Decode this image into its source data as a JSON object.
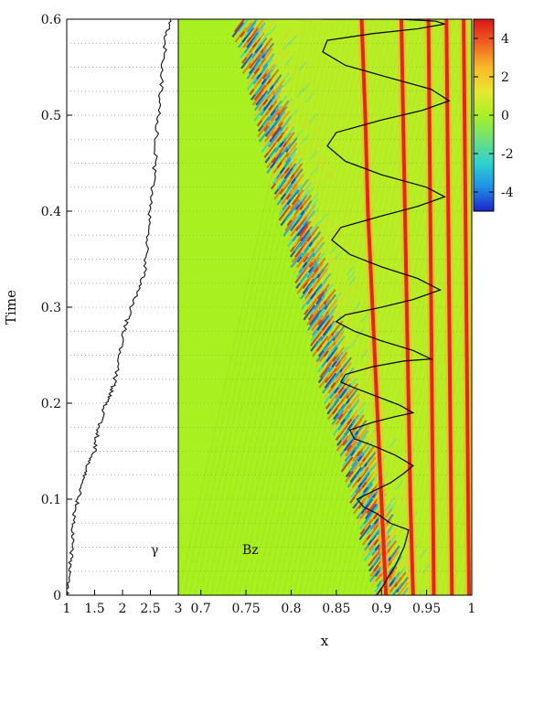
{
  "chart_data": [
    {
      "type": "line",
      "panel": "left",
      "label": "γ",
      "xlim": [
        1,
        3
      ],
      "ylim": [
        0,
        0.6
      ],
      "xticks": [
        "1",
        "1.5",
        "2",
        "2.5",
        "3"
      ],
      "yticks": [
        "0",
        "0.1",
        "0.2",
        "0.3",
        "0.4",
        "0.5",
        "0.6"
      ],
      "ylabel": "Time",
      "grid": "horizontal dotted",
      "series": [
        {
          "x": [
            1.0,
            1.04,
            1.08,
            1.1,
            1.12,
            1.2,
            1.3,
            1.35,
            1.5,
            1.55,
            1.65,
            1.75,
            1.85,
            1.95,
            2.05,
            2.15,
            2.3,
            2.4,
            2.45,
            2.5,
            2.55,
            2.6,
            2.62,
            2.68,
            2.72,
            2.78,
            2.85
          ],
          "y": [
            0.0,
            0.02,
            0.04,
            0.06,
            0.08,
            0.1,
            0.12,
            0.135,
            0.15,
            0.17,
            0.19,
            0.205,
            0.22,
            0.25,
            0.28,
            0.3,
            0.32,
            0.34,
            0.37,
            0.4,
            0.43,
            0.46,
            0.49,
            0.52,
            0.55,
            0.58,
            0.6
          ]
        }
      ]
    },
    {
      "type": "heatmap",
      "panel": "right",
      "label": "Bz",
      "xlabel": "x",
      "xlim": [
        0.675,
        1.0
      ],
      "ylim": [
        0,
        0.6
      ],
      "xticks": [
        "0.7",
        "0.75",
        "0.8",
        "0.85",
        "0.9",
        "0.95",
        "1"
      ],
      "colorbar": {
        "range": [
          -5,
          5
        ],
        "ticks": [
          "4",
          "2",
          "0",
          "-2",
          "-4"
        ],
        "colors": [
          "#1e24c8",
          "#1f8fe6",
          "#2ed2d0",
          "#6fe07a",
          "#a8f020",
          "#e8e830",
          "#f8b828",
          "#f06020",
          "#d81818"
        ]
      },
      "background_color": "#a8f020",
      "front": {
        "x": [
          0.9,
          0.88,
          0.86,
          0.84,
          0.82,
          0.8,
          0.78,
          0.76,
          0.74
        ],
        "y": [
          0.0,
          0.08,
          0.15,
          0.22,
          0.3,
          0.38,
          0.45,
          0.53,
          0.6
        ]
      },
      "stripes": [
        {
          "x": [
            0.905,
            0.9,
            0.895,
            0.89,
            0.885,
            0.882,
            0.878
          ],
          "y": [
            0.0,
            0.1,
            0.2,
            0.3,
            0.4,
            0.5,
            0.6
          ]
        },
        {
          "x": [
            0.935,
            0.932,
            0.93,
            0.928,
            0.926,
            0.924,
            0.922
          ],
          "y": [
            0.0,
            0.1,
            0.2,
            0.3,
            0.4,
            0.5,
            0.6
          ]
        },
        {
          "x": [
            0.958,
            0.957,
            0.956,
            0.955,
            0.954,
            0.953,
            0.952
          ],
          "y": [
            0.0,
            0.1,
            0.2,
            0.3,
            0.4,
            0.5,
            0.6
          ]
        },
        {
          "x": [
            0.978,
            0.977,
            0.976,
            0.975,
            0.974,
            0.973,
            0.972
          ],
          "y": [
            0.0,
            0.1,
            0.2,
            0.3,
            0.4,
            0.5,
            0.6
          ]
        },
        {
          "x": [
            0.997,
            0.996,
            0.995,
            0.994,
            0.993,
            0.992,
            0.991
          ],
          "y": [
            0.0,
            0.1,
            0.2,
            0.3,
            0.4,
            0.5,
            0.6
          ]
        }
      ],
      "trajectory": {
        "x": [
          0.895,
          0.902,
          0.908,
          0.915,
          0.92,
          0.925,
          0.928,
          0.93,
          0.91,
          0.895,
          0.88,
          0.873,
          0.89,
          0.91,
          0.925,
          0.935,
          0.915,
          0.89,
          0.87,
          0.865,
          0.89,
          0.915,
          0.935,
          0.92,
          0.895,
          0.87,
          0.855,
          0.86,
          0.89,
          0.925,
          0.955,
          0.935,
          0.9,
          0.87,
          0.85,
          0.86,
          0.9,
          0.935,
          0.965,
          0.94,
          0.9,
          0.865,
          0.845,
          0.855,
          0.9,
          0.94,
          0.97,
          0.95,
          0.9,
          0.86,
          0.84,
          0.85,
          0.9,
          0.945,
          0.975,
          0.955,
          0.905,
          0.86,
          0.835,
          0.84,
          0.89,
          0.94,
          0.97,
          0.96,
          0.92,
          0.87,
          0.84,
          0.835,
          0.87
        ],
        "y": [
          0.0,
          0.01,
          0.02,
          0.03,
          0.04,
          0.05,
          0.06,
          0.068,
          0.075,
          0.085,
          0.092,
          0.1,
          0.108,
          0.117,
          0.127,
          0.135,
          0.146,
          0.156,
          0.163,
          0.172,
          0.18,
          0.186,
          0.19,
          0.198,
          0.207,
          0.216,
          0.222,
          0.23,
          0.238,
          0.244,
          0.246,
          0.255,
          0.265,
          0.275,
          0.285,
          0.292,
          0.3,
          0.308,
          0.318,
          0.33,
          0.342,
          0.355,
          0.37,
          0.383,
          0.395,
          0.405,
          0.415,
          0.425,
          0.438,
          0.452,
          0.468,
          0.482,
          0.495,
          0.505,
          0.515,
          0.527,
          0.54,
          0.552,
          0.566,
          0.578,
          0.585,
          0.59,
          0.595,
          0.598,
          0.6,
          0.6,
          0.6,
          0.6,
          0.6
        ]
      }
    }
  ]
}
